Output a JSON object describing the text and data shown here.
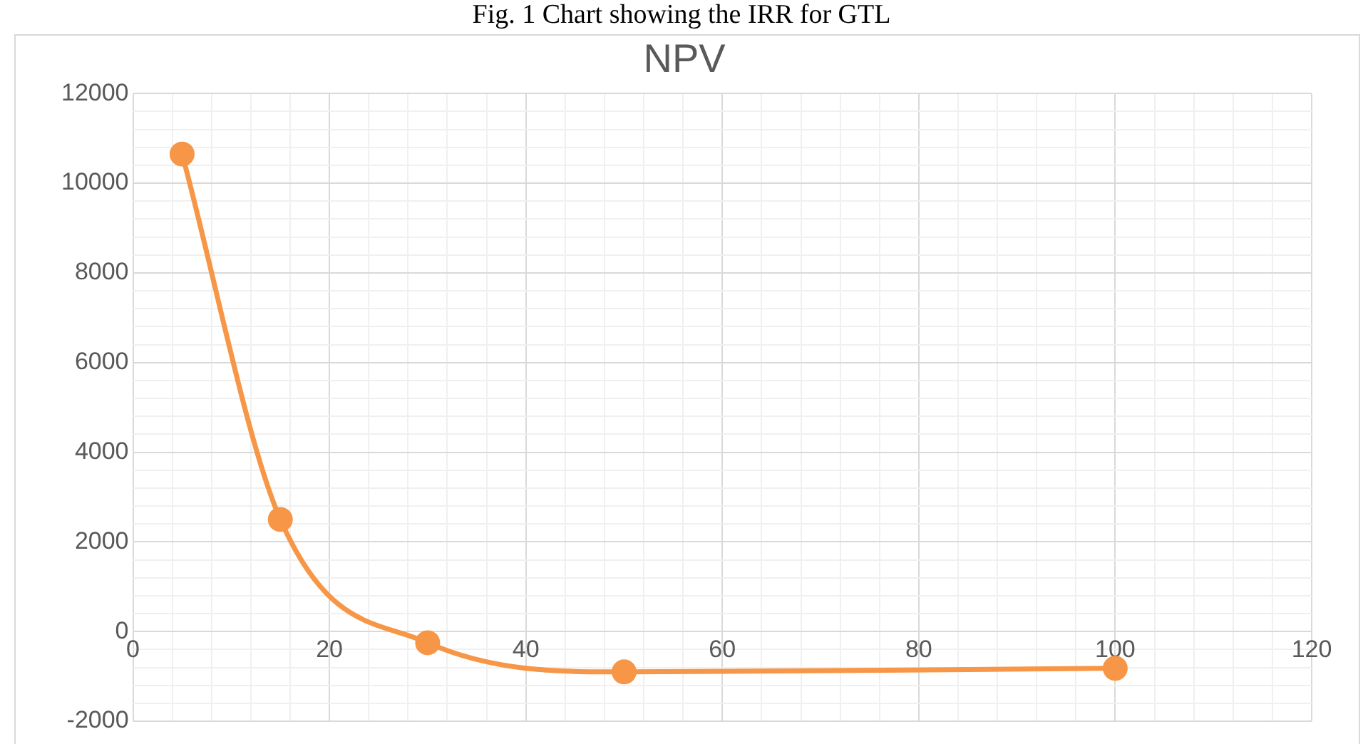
{
  "chart_data": {
    "type": "line",
    "title": "NPV",
    "annotations": [
      "Fig. 1 Chart showing the IRR for GTL"
    ],
    "x": [
      5,
      15,
      30,
      50,
      100
    ],
    "series": [
      {
        "color": "#f79646",
        "values": [
          10650,
          2500,
          -250,
          -900,
          -820
        ]
      }
    ],
    "xlim": [
      0,
      120
    ],
    "xticks": [
      0,
      {
        "value": 4,
        "label": null
      },
      {
        "value": 8,
        "label": null
      },
      {
        "value": 12,
        "label": null
      },
      {
        "value": 16,
        "label": null
      },
      20,
      {
        "value": 24,
        "label": null
      },
      {
        "value": 28,
        "label": null
      },
      {
        "value": 32,
        "label": null
      },
      {
        "value": 36,
        "label": null
      },
      40,
      {
        "value": 44,
        "label": null
      },
      {
        "value": 48,
        "label": null
      },
      {
        "value": 52,
        "label": null
      },
      {
        "value": 56,
        "label": null
      },
      60,
      {
        "value": 64,
        "label": null
      },
      {
        "value": 68,
        "label": null
      },
      {
        "value": 72,
        "label": null
      },
      {
        "value": 76,
        "label": null
      },
      80,
      {
        "value": 84,
        "label": null
      },
      {
        "value": 88,
        "label": null
      },
      {
        "value": 92,
        "label": null
      },
      {
        "value": 96,
        "label": null
      },
      100,
      {
        "value": 104,
        "label": null
      },
      {
        "value": 108,
        "label": null
      },
      {
        "value": 112,
        "label": null
      },
      {
        "value": 116,
        "label": null
      },
      120
    ],
    "ylim": [
      -2000,
      12000
    ],
    "yticks": [
      -2000,
      {
        "value": -1600,
        "label": null
      },
      {
        "value": -1200,
        "label": null
      },
      {
        "value": -800,
        "label": null
      },
      {
        "value": -400,
        "label": null
      },
      0,
      {
        "value": 400,
        "label": null
      },
      {
        "value": 800,
        "label": null
      },
      {
        "value": 1200,
        "label": null
      },
      {
        "value": 1600,
        "label": null
      },
      2000,
      {
        "value": 2400,
        "label": null
      },
      {
        "value": 2800,
        "label": null
      },
      {
        "value": 3200,
        "label": null
      },
      {
        "value": 3600,
        "label": null
      },
      4000,
      {
        "value": 4400,
        "label": null
      },
      {
        "value": 4800,
        "label": null
      },
      {
        "value": 5200,
        "label": null
      },
      {
        "value": 5600,
        "label": null
      },
      6000,
      {
        "value": 6400,
        "label": null
      },
      {
        "value": 6800,
        "label": null
      },
      {
        "value": 7200,
        "label": null
      },
      {
        "value": 7600,
        "label": null
      },
      8000,
      {
        "value": 8400,
        "label": null
      },
      {
        "value": 8800,
        "label": null
      },
      {
        "value": 9200,
        "label": null
      },
      {
        "value": 9600,
        "label": null
      },
      10000,
      {
        "value": 10400,
        "label": null
      },
      {
        "value": 10800,
        "label": null
      },
      {
        "value": 11200,
        "label": null
      },
      {
        "value": 11600,
        "label": null
      },
      12000
    ],
    "grid": true,
    "legend": false,
    "marker": "circle",
    "line_style": "solid"
  }
}
